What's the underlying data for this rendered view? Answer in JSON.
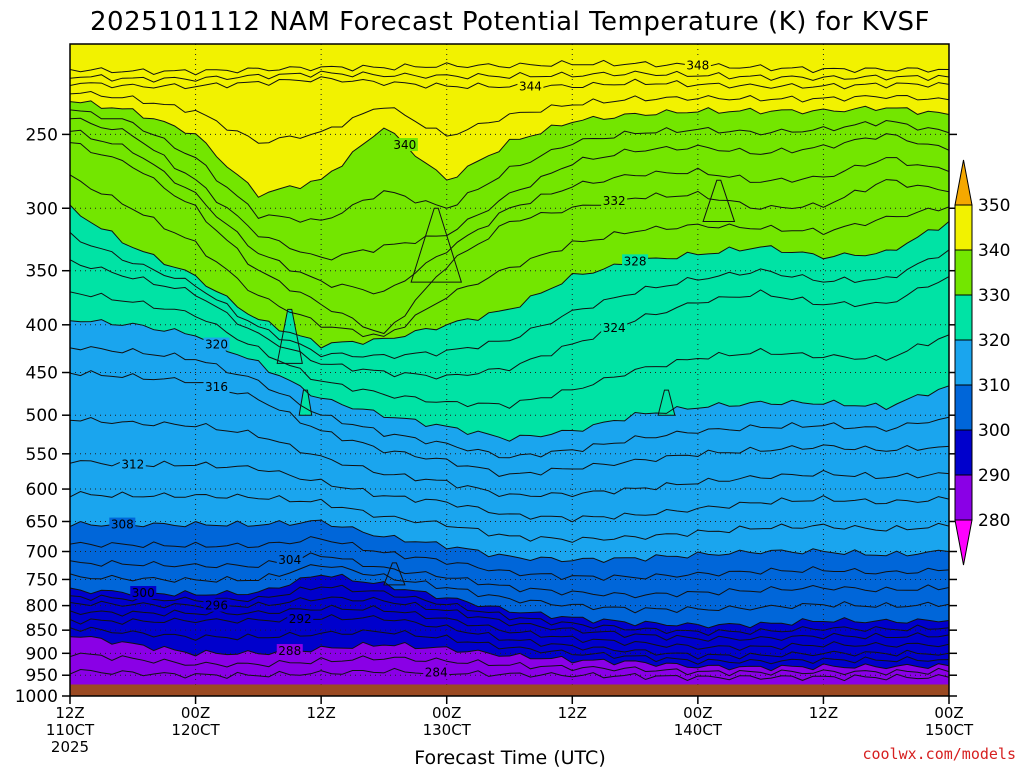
{
  "chart_data": {
    "type": "contour",
    "title": "2025101112 NAM Forecast Potential Temperature (K) for KVSF",
    "xlabel": "Forecast Time (UTC)",
    "ylabel": "",
    "credit": "coolwx.com/models",
    "x_ticks": [
      {
        "hours": 0,
        "line1": "12Z",
        "line2": "110CT",
        "line3": "2025"
      },
      {
        "hours": 12,
        "line1": "00Z",
        "line2": "120CT",
        "line3": ""
      },
      {
        "hours": 24,
        "line1": "12Z",
        "line2": "",
        "line3": ""
      },
      {
        "hours": 36,
        "line1": "00Z",
        "line2": "130CT",
        "line3": ""
      },
      {
        "hours": 48,
        "line1": "12Z",
        "line2": "",
        "line3": ""
      },
      {
        "hours": 60,
        "line1": "00Z",
        "line2": "140CT",
        "line3": ""
      },
      {
        "hours": 72,
        "line1": "12Z",
        "line2": "",
        "line3": ""
      },
      {
        "hours": 84,
        "line1": "00Z",
        "line2": "150CT",
        "line3": ""
      }
    ],
    "y_ticks": [
      250,
      300,
      350,
      400,
      450,
      500,
      550,
      600,
      650,
      700,
      750,
      800,
      850,
      900,
      950,
      1000
    ],
    "y_range_hpa": [
      200,
      1000
    ],
    "y_scale": "log-pressure",
    "x_range_hours": [
      0,
      84
    ],
    "grid": true,
    "ground_color": "#9b4a22",
    "surface_pressure_hpa": 972,
    "colorbar": {
      "levels": [
        280,
        290,
        300,
        310,
        320,
        330,
        340,
        350
      ],
      "labels": [
        "280",
        "290",
        "300",
        "310",
        "320",
        "330",
        "340",
        "350"
      ],
      "colors": [
        "#8a00e6",
        "#0000cc",
        "#0066d9",
        "#1aa5ee",
        "#00e3a5",
        "#73e600",
        "#f2f200"
      ],
      "under_color": "#ff00ff",
      "over_color": "#f5a800"
    },
    "contours": [
      {
        "value": 348,
        "label": "348",
        "label_x": 60,
        "p": [
          213,
          214,
          214,
          213,
          212,
          212,
          211,
          211,
          210,
          210,
          211,
          212,
          213,
          213,
          213
        ]
      },
      {
        "value": 344,
        "label": "344",
        "label_x": 44,
        "p": [
          220,
          222,
          222,
          220,
          218,
          220,
          222,
          222,
          222,
          220,
          221,
          222,
          222,
          221,
          221
        ]
      },
      {
        "value": 340,
        "label": "340",
        "label_x": 32,
        "p": [
          230,
          236,
          250,
          290,
          280,
          245,
          280,
          255,
          242,
          238,
          236,
          236,
          236,
          234,
          238
        ]
      },
      {
        "value": 336,
        "label": "",
        "label_x": 0,
        "p": [
          240,
          250,
          280,
          320,
          340,
          330,
          320,
          290,
          268,
          260,
          258,
          262,
          258,
          250,
          260
        ]
      },
      {
        "value": 332,
        "label": "332",
        "label_x": 52,
        "p": [
          255,
          270,
          300,
          350,
          380,
          410,
          345,
          310,
          300,
          292,
          290,
          300,
          298,
          280,
          288
        ]
      },
      {
        "value": 328,
        "label": "328",
        "label_x": 54,
        "p": [
          300,
          330,
          355,
          395,
          420,
          415,
          400,
          385,
          355,
          342,
          336,
          330,
          338,
          335,
          310
        ]
      },
      {
        "value": 324,
        "label": "324",
        "label_x": 52,
        "p": [
          342,
          356,
          370,
          410,
          440,
          450,
          455,
          445,
          420,
          395,
          378,
          370,
          380,
          380,
          355
        ]
      },
      {
        "value": 320,
        "label": "320",
        "label_x": 14,
        "p": [
          395,
          400,
          410,
          440,
          480,
          500,
          515,
          530,
          520,
          500,
          490,
          485,
          485,
          490,
          465
        ]
      },
      {
        "value": 316,
        "label": "316",
        "label_x": 14,
        "p": [
          450,
          455,
          460,
          480,
          520,
          545,
          560,
          580,
          570,
          560,
          550,
          545,
          540,
          545,
          540
        ]
      },
      {
        "value": 312,
        "label": "312",
        "label_x": 6,
        "p": [
          560,
          565,
          565,
          570,
          590,
          610,
          620,
          640,
          645,
          640,
          630,
          620,
          615,
          620,
          615
        ]
      },
      {
        "value": 308,
        "label": "308",
        "label_x": 5,
        "p": [
          655,
          655,
          655,
          655,
          650,
          675,
          690,
          710,
          715,
          712,
          706,
          700,
          700,
          706,
          700
        ]
      },
      {
        "value": 304,
        "label": "304",
        "label_x": 21,
        "p": [
          720,
          722,
          725,
          725,
          705,
          730,
          745,
          765,
          775,
          780,
          775,
          770,
          765,
          770,
          765
        ]
      },
      {
        "value": 300,
        "label": "300",
        "label_x": 7,
        "p": [
          770,
          775,
          778,
          775,
          740,
          760,
          785,
          810,
          825,
          835,
          840,
          838,
          830,
          832,
          830
        ]
      },
      {
        "value": 296,
        "label": "296",
        "label_x": 14,
        "p": [
          795,
          798,
          800,
          800,
          785,
          790,
          810,
          835,
          850,
          860,
          868,
          868,
          862,
          864,
          860
        ]
      },
      {
        "value": 292,
        "label": "292",
        "label_x": 22,
        "p": [
          830,
          832,
          830,
          830,
          825,
          825,
          845,
          870,
          885,
          895,
          905,
          905,
          900,
          900,
          900
        ]
      },
      {
        "value": 288,
        "label": "288",
        "label_x": 21,
        "p": [
          860,
          880,
          900,
          900,
          890,
          880,
          890,
          905,
          915,
          920,
          930,
          932,
          930,
          930,
          928
        ]
      },
      {
        "value": 284,
        "label": "284",
        "label_x": 35,
        "p": [
          940,
          945,
          950,
          950,
          945,
          940,
          945,
          948,
          950,
          952,
          955,
          955,
          955,
          955,
          955
        ]
      }
    ],
    "spikes": [
      {
        "x": 21,
        "p_top": 385,
        "p_base": 440,
        "width": 1.2
      },
      {
        "x": 35,
        "p_top": 300,
        "p_base": 360,
        "width": 2.4
      },
      {
        "x": 22.5,
        "p_top": 470,
        "p_base": 500,
        "width": 0.6
      },
      {
        "x": 57,
        "p_top": 470,
        "p_base": 500,
        "width": 0.8
      },
      {
        "x": 62,
        "p_top": 280,
        "p_base": 310,
        "width": 1.5
      },
      {
        "x": 31,
        "p_top": 720,
        "p_base": 760,
        "width": 1.0
      }
    ]
  }
}
